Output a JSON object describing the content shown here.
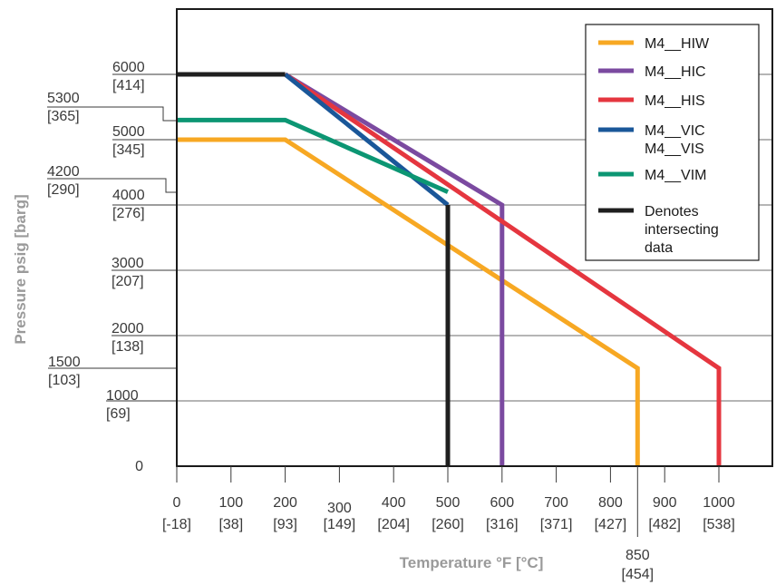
{
  "chart_data": {
    "type": "line",
    "xlabel": "Temperature °F [°C]",
    "ylabel": "Pressure psig [barg]",
    "xlim": [
      0,
      1100
    ],
    "ylim": [
      0,
      7000
    ],
    "grid": "horizontal",
    "legend_position": "top-right",
    "y_ticks": [
      {
        "value": 0,
        "label": "0",
        "sub": ""
      },
      {
        "value": 1000,
        "label": "1000",
        "sub": "[69]"
      },
      {
        "value": 1500,
        "label": "1500",
        "sub": "[103]"
      },
      {
        "value": 2000,
        "label": "2000",
        "sub": "[138]"
      },
      {
        "value": 3000,
        "label": "3000",
        "sub": "[207]"
      },
      {
        "value": 4000,
        "label": "4000",
        "sub": "[276]"
      },
      {
        "value": 4200,
        "label": "4200",
        "sub": "[290]"
      },
      {
        "value": 5000,
        "label": "5000",
        "sub": "[345]"
      },
      {
        "value": 5300,
        "label": "5300",
        "sub": "[365]"
      },
      {
        "value": 6000,
        "label": "6000",
        "sub": "[414]"
      }
    ],
    "x_ticks": [
      {
        "value": 0,
        "label": "0",
        "sub": "[-18]"
      },
      {
        "value": 100,
        "label": "100",
        "sub": "[38]"
      },
      {
        "value": 200,
        "label": "200",
        "sub": "[93]"
      },
      {
        "value": 300,
        "label": "300",
        "sub": "[149]"
      },
      {
        "value": 400,
        "label": "400",
        "sub": "[204]"
      },
      {
        "value": 500,
        "label": "500",
        "sub": "[260]"
      },
      {
        "value": 600,
        "label": "600",
        "sub": "[316]"
      },
      {
        "value": 700,
        "label": "700",
        "sub": "[371]"
      },
      {
        "value": 800,
        "label": "800",
        "sub": "[427]"
      },
      {
        "value": 850,
        "label": "850",
        "sub": "[454]"
      },
      {
        "value": 900,
        "label": "900",
        "sub": "[482]"
      },
      {
        "value": 1000,
        "label": "1000",
        "sub": "[538]"
      }
    ],
    "series": [
      {
        "name": "M4__HIW",
        "color": "#F7A823",
        "x": [
          0,
          200,
          850,
          850
        ],
        "y": [
          5000,
          5000,
          1500,
          0
        ]
      },
      {
        "name": "M4__HIC",
        "color": "#7B4AA0",
        "x": [
          200,
          600,
          600
        ],
        "y": [
          6000,
          4000,
          0
        ]
      },
      {
        "name": "M4__HIS",
        "color": "#E5363F",
        "x": [
          200,
          1000,
          1000
        ],
        "y": [
          6000,
          1500,
          0
        ]
      },
      {
        "name": "M4__VIC\nM4__VIS",
        "color": "#1A5799",
        "x": [
          200,
          500
        ],
        "y": [
          6000,
          4000
        ]
      },
      {
        "name": "M4__VIM",
        "color": "#0C9673",
        "x": [
          0,
          200,
          500
        ],
        "y": [
          5300,
          5300,
          4200
        ]
      },
      {
        "name": "Denotes\nintersecting\ndata",
        "color": "#1f1f1f",
        "x": [
          0,
          200,
          null,
          500,
          500
        ],
        "y": [
          6000,
          6000,
          null,
          4000,
          0
        ]
      }
    ]
  }
}
